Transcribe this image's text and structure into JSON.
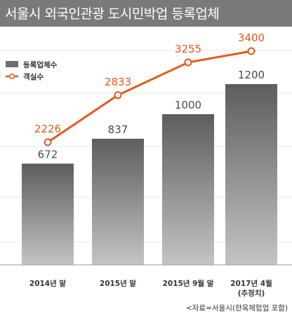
{
  "header": {
    "title": "서울시 외국인관광 도시민박업 등록업체"
  },
  "chart_data": {
    "type": "bar",
    "categories": [
      "2014년 말",
      "2015년 말",
      "2015년 9월 말",
      "2017년 4월\n(추정치)"
    ],
    "series": [
      {
        "name": "등록업체수",
        "type": "bar",
        "values": [
          672,
          837,
          1000,
          1200
        ],
        "color": "#6e6e6e"
      },
      {
        "name": "객실수",
        "type": "line",
        "values": [
          2226,
          2833,
          3255,
          3400
        ],
        "color": "#e35a1c"
      }
    ],
    "legend": "top-left",
    "grid": true
  },
  "footer": {
    "source": "<자료=서울시(한옥체험업 포함)"
  }
}
